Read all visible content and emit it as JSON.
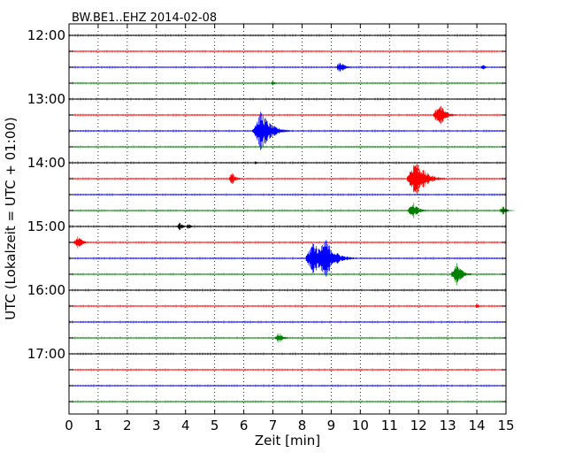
{
  "chart_data": {
    "type": "line",
    "chart_kind": "dayplot-seismogram",
    "title": "BW.BE1..EHZ 2014-02-08",
    "xlabel": "Zeit  [min]",
    "ylabel": "UTC (Lokalzeit = UTC + 01:00)",
    "xlim": [
      0,
      15
    ],
    "x_ticks": [
      "0",
      "1",
      "2",
      "3",
      "4",
      "5",
      "6",
      "7",
      "8",
      "9",
      "10",
      "11",
      "12",
      "13",
      "14",
      "15"
    ],
    "y_tick_labels": [
      "12:00",
      "13:00",
      "14:00",
      "15:00",
      "16:00",
      "17:00"
    ],
    "trace_interval_minutes": 15,
    "grid": "vertical dotted at every minute",
    "color_cycle": [
      "#000000",
      "#ff0000",
      "#0000ff",
      "#008000"
    ],
    "traces": [
      {
        "start": "12:00",
        "events": []
      },
      {
        "start": "12:15",
        "events": []
      },
      {
        "start": "12:30",
        "events": [
          {
            "minute": 9.3,
            "amplitude": 0.35
          },
          {
            "minute": 14.2,
            "amplitude": 0.15
          }
        ]
      },
      {
        "start": "12:45",
        "events": [
          {
            "minute": 7.0,
            "amplitude": 0.15
          }
        ]
      },
      {
        "start": "13:00",
        "events": []
      },
      {
        "start": "13:15",
        "events": [
          {
            "minute": 12.7,
            "amplitude": 0.6
          }
        ]
      },
      {
        "start": "13:30",
        "events": [
          {
            "minute": 6.6,
            "amplitude": 1.0
          }
        ]
      },
      {
        "start": "13:45",
        "events": []
      },
      {
        "start": "14:00",
        "events": [
          {
            "minute": 6.4,
            "amplitude": 0.1
          }
        ]
      },
      {
        "start": "14:15",
        "events": [
          {
            "minute": 5.6,
            "amplitude": 0.3
          },
          {
            "minute": 11.9,
            "amplitude": 1.0
          }
        ]
      },
      {
        "start": "14:30",
        "events": []
      },
      {
        "start": "14:45",
        "events": [
          {
            "minute": 11.8,
            "amplitude": 0.45
          },
          {
            "minute": 14.9,
            "amplitude": 0.25
          }
        ]
      },
      {
        "start": "15:00",
        "events": [
          {
            "minute": 3.8,
            "amplitude": 0.2
          },
          {
            "minute": 4.1,
            "amplitude": 0.15
          }
        ]
      },
      {
        "start": "15:15",
        "events": [
          {
            "minute": 0.3,
            "amplitude": 0.35
          }
        ]
      },
      {
        "start": "15:30",
        "events": [
          {
            "minute": 8.4,
            "amplitude": 0.9
          },
          {
            "minute": 8.8,
            "amplitude": 1.0
          }
        ]
      },
      {
        "start": "15:45",
        "events": [
          {
            "minute": 13.3,
            "amplitude": 0.55
          }
        ]
      },
      {
        "start": "16:00",
        "events": []
      },
      {
        "start": "16:15",
        "events": [
          {
            "minute": 14.0,
            "amplitude": 0.12
          }
        ]
      },
      {
        "start": "16:30",
        "events": []
      },
      {
        "start": "16:45",
        "events": [
          {
            "minute": 7.2,
            "amplitude": 0.3
          }
        ]
      },
      {
        "start": "17:00",
        "events": []
      },
      {
        "start": "17:15",
        "events": []
      },
      {
        "start": "17:30",
        "events": []
      },
      {
        "start": "17:45",
        "events": []
      }
    ]
  }
}
